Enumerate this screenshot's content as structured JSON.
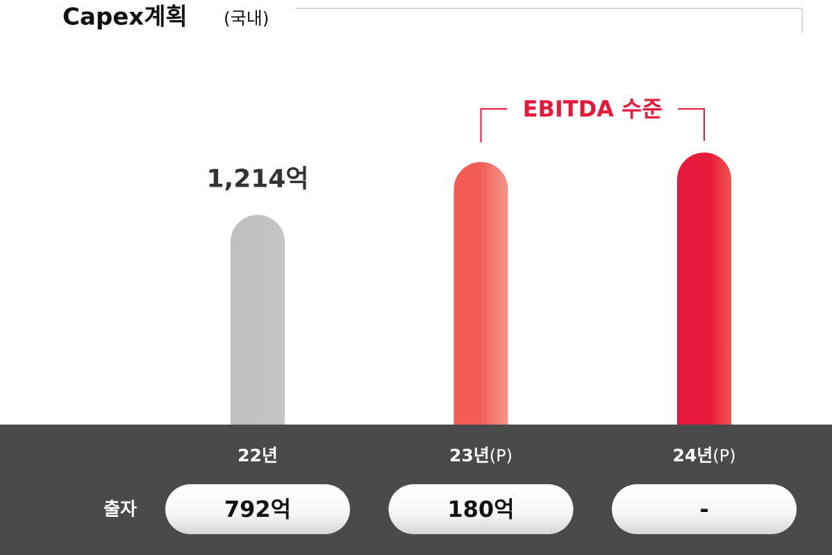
{
  "chart_data": {
    "type": "bar",
    "title": "Capex계획",
    "subtitle": "(국내)",
    "categories": [
      "22년",
      "23년",
      "24년"
    ],
    "category_suffixes": [
      null,
      "(P)",
      "(P)"
    ],
    "values": [
      1214,
      1520,
      1575
    ],
    "value_labels": [
      "1,214억",
      null,
      null
    ],
    "colors": [
      "#bfbfbf",
      "#f25c54",
      "#e6193a"
    ],
    "annotation": "EBITDA 수준",
    "investment": {
      "label": "출자",
      "values": [
        "792억",
        "180억",
        "-"
      ]
    }
  }
}
